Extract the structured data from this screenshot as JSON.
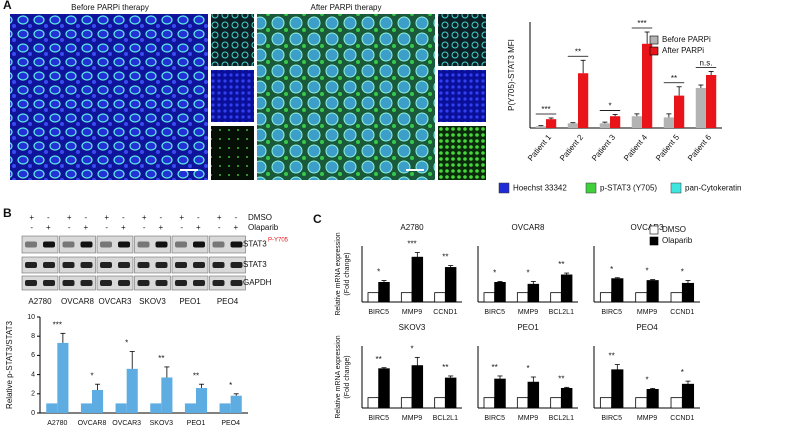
{
  "panels": {
    "A": {
      "label": "A",
      "images": [
        "Before PARPi therapy",
        "After PARPi therapy"
      ],
      "channels": [
        {
          "name": "Hoechst 33342",
          "color": "#1f2bd6"
        },
        {
          "name": "p-STAT3 (Y705)",
          "color": "#3fd13a"
        },
        {
          "name": "pan-Cytokeratin",
          "color": "#3ee6e0"
        }
      ]
    },
    "B": {
      "label": "B",
      "treatments": [
        {
          "label": "DMSO",
          "signs": [
            "+",
            "-",
            "+",
            "-",
            "+",
            "-",
            "+",
            "-",
            "+",
            "-",
            "+",
            "-"
          ]
        },
        {
          "label": "Olaparib",
          "signs": [
            "-",
            "+",
            "-",
            "+",
            "-",
            "+",
            "-",
            "+",
            "-",
            "+",
            "-",
            "+"
          ]
        }
      ],
      "bands": [
        "STAT3",
        "STAT3",
        "GAPDH"
      ],
      "band_superscript": "P-Y705",
      "cell_lines": [
        "A2780",
        "OVCAR8",
        "OVCAR3",
        "SKOV3",
        "PEO1",
        "PEO4"
      ]
    },
    "C": {
      "label": "C"
    }
  },
  "chart_data": [
    {
      "type": "bar",
      "ylabel": "P(Y705)-STAT3 MFI",
      "categories": [
        "Patient 1",
        "Patient 2",
        "Patient 3",
        "Patient 4",
        "Patient 5",
        "Patient 6"
      ],
      "series": [
        {
          "name": "Before PARPi",
          "color": "#b3b3b3",
          "values": [
            3,
            8,
            8,
            20,
            18,
            68
          ],
          "errors": [
            1,
            1,
            2,
            4,
            6,
            5
          ]
        },
        {
          "name": "After PARPi",
          "color": "#e8141a",
          "values": [
            15,
            93,
            20,
            143,
            55,
            90
          ],
          "errors": [
            2,
            22,
            3,
            20,
            15,
            6
          ]
        }
      ],
      "annotations": [
        "***",
        "**",
        "*",
        "***",
        "**",
        "n.s."
      ],
      "ylim": [
        0,
        180
      ],
      "legend": "upper right"
    },
    {
      "type": "bar",
      "ylabel": "Relative p-STAT3/STAT3",
      "categories": [
        "A2780",
        "OVCAR8",
        "OVCAR3",
        "SKOV3",
        "PEO1",
        "PEO4"
      ],
      "series": [
        {
          "color": "#5dade2",
          "values": [
            1,
            1,
            1,
            1,
            1,
            1
          ]
        },
        {
          "color": "#5dade2",
          "values": [
            7.3,
            2.4,
            4.6,
            3.7,
            2.6,
            1.8
          ],
          "errors": [
            1,
            0.6,
            1.8,
            1.1,
            0.4,
            0.2
          ]
        }
      ],
      "annotations": [
        "***",
        "*",
        "*",
        "**",
        "**",
        "*"
      ],
      "ylim": [
        0,
        10
      ],
      "yticks": [
        0,
        2,
        4,
        6,
        8,
        10
      ]
    },
    {
      "type": "bar",
      "title": "A2780",
      "ylabel": [
        "Relative mRNA expression",
        "(Fold change)"
      ],
      "edgecolor": "#000000",
      "categories": [
        "BIRC5",
        "MMP9",
        "CCND1"
      ],
      "series": [
        {
          "color": "#ffffff",
          "values": [
            1,
            1,
            1
          ]
        },
        {
          "color": "#000000",
          "values": [
            2.1,
            4.8,
            3.7
          ],
          "errors": [
            0.2,
            0.5,
            0.2
          ]
        }
      ],
      "annotations": [
        "*",
        "***",
        "**"
      ],
      "ylim": [
        0,
        6
      ]
    },
    {
      "type": "bar",
      "title": "OVCAR8",
      "edgecolor": "#000000",
      "categories": [
        "BIRC5",
        "MMP9",
        "BCL2L1"
      ],
      "series": [
        {
          "color": "#ffffff",
          "values": [
            1,
            1,
            1
          ]
        },
        {
          "color": "#000000",
          "values": [
            2.1,
            1.9,
            2.9
          ],
          "errors": [
            0.1,
            0.3,
            0.2
          ]
        }
      ],
      "annotations": [
        "*",
        "*",
        "**"
      ],
      "ylim": [
        0,
        6
      ]
    },
    {
      "type": "bar",
      "title": "OVCAR3",
      "edgecolor": "#000000",
      "categories": [
        "BIRC5",
        "MMP9",
        "CCND1"
      ],
      "series": [
        {
          "name": "DMSO",
          "color": "#ffffff",
          "values": [
            1,
            1,
            1
          ]
        },
        {
          "name": "Olaparib",
          "color": "#000000",
          "values": [
            2.5,
            2.3,
            2.0
          ],
          "errors": [
            0.1,
            0.1,
            0.3
          ]
        }
      ],
      "annotations": [
        "*",
        "*",
        "*"
      ],
      "ylim": [
        0,
        6
      ],
      "legend": "upper right"
    },
    {
      "type": "bar",
      "title": "SKOV3",
      "ylabel": [
        "Relative mRNA expression",
        "(Fold change)"
      ],
      "edgecolor": "#000000",
      "categories": [
        "BIRC5",
        "MMP9",
        "BCL2L1"
      ],
      "series": [
        {
          "color": "#ffffff",
          "values": [
            1,
            1,
            1
          ]
        },
        {
          "color": "#000000",
          "values": [
            3.8,
            4.1,
            2.9
          ],
          "errors": [
            0.1,
            0.8,
            0.2
          ]
        }
      ],
      "annotations": [
        "**",
        "*",
        "**"
      ],
      "ylim": [
        0,
        6
      ]
    },
    {
      "type": "bar",
      "title": "PEO1",
      "edgecolor": "#000000",
      "categories": [
        "BIRC5",
        "MMP9",
        "BCL2L1"
      ],
      "series": [
        {
          "color": "#ffffff",
          "values": [
            1,
            1,
            1
          ]
        },
        {
          "color": "#000000",
          "values": [
            2.8,
            2.5,
            1.9
          ],
          "errors": [
            0.3,
            0.5,
            0.1
          ]
        }
      ],
      "annotations": [
        "**",
        "*",
        "**"
      ],
      "ylim": [
        0,
        6
      ]
    },
    {
      "type": "bar",
      "title": "PEO4",
      "edgecolor": "#000000",
      "categories": [
        "BIRC5",
        "MMP9",
        "CCND1"
      ],
      "series": [
        {
          "color": "#ffffff",
          "values": [
            1,
            1,
            1
          ]
        },
        {
          "color": "#000000",
          "values": [
            3.7,
            1.8,
            2.3
          ],
          "errors": [
            0.5,
            0.1,
            0.3
          ]
        }
      ],
      "annotations": [
        "**",
        "*",
        "*"
      ],
      "ylim": [
        0,
        6
      ]
    }
  ]
}
